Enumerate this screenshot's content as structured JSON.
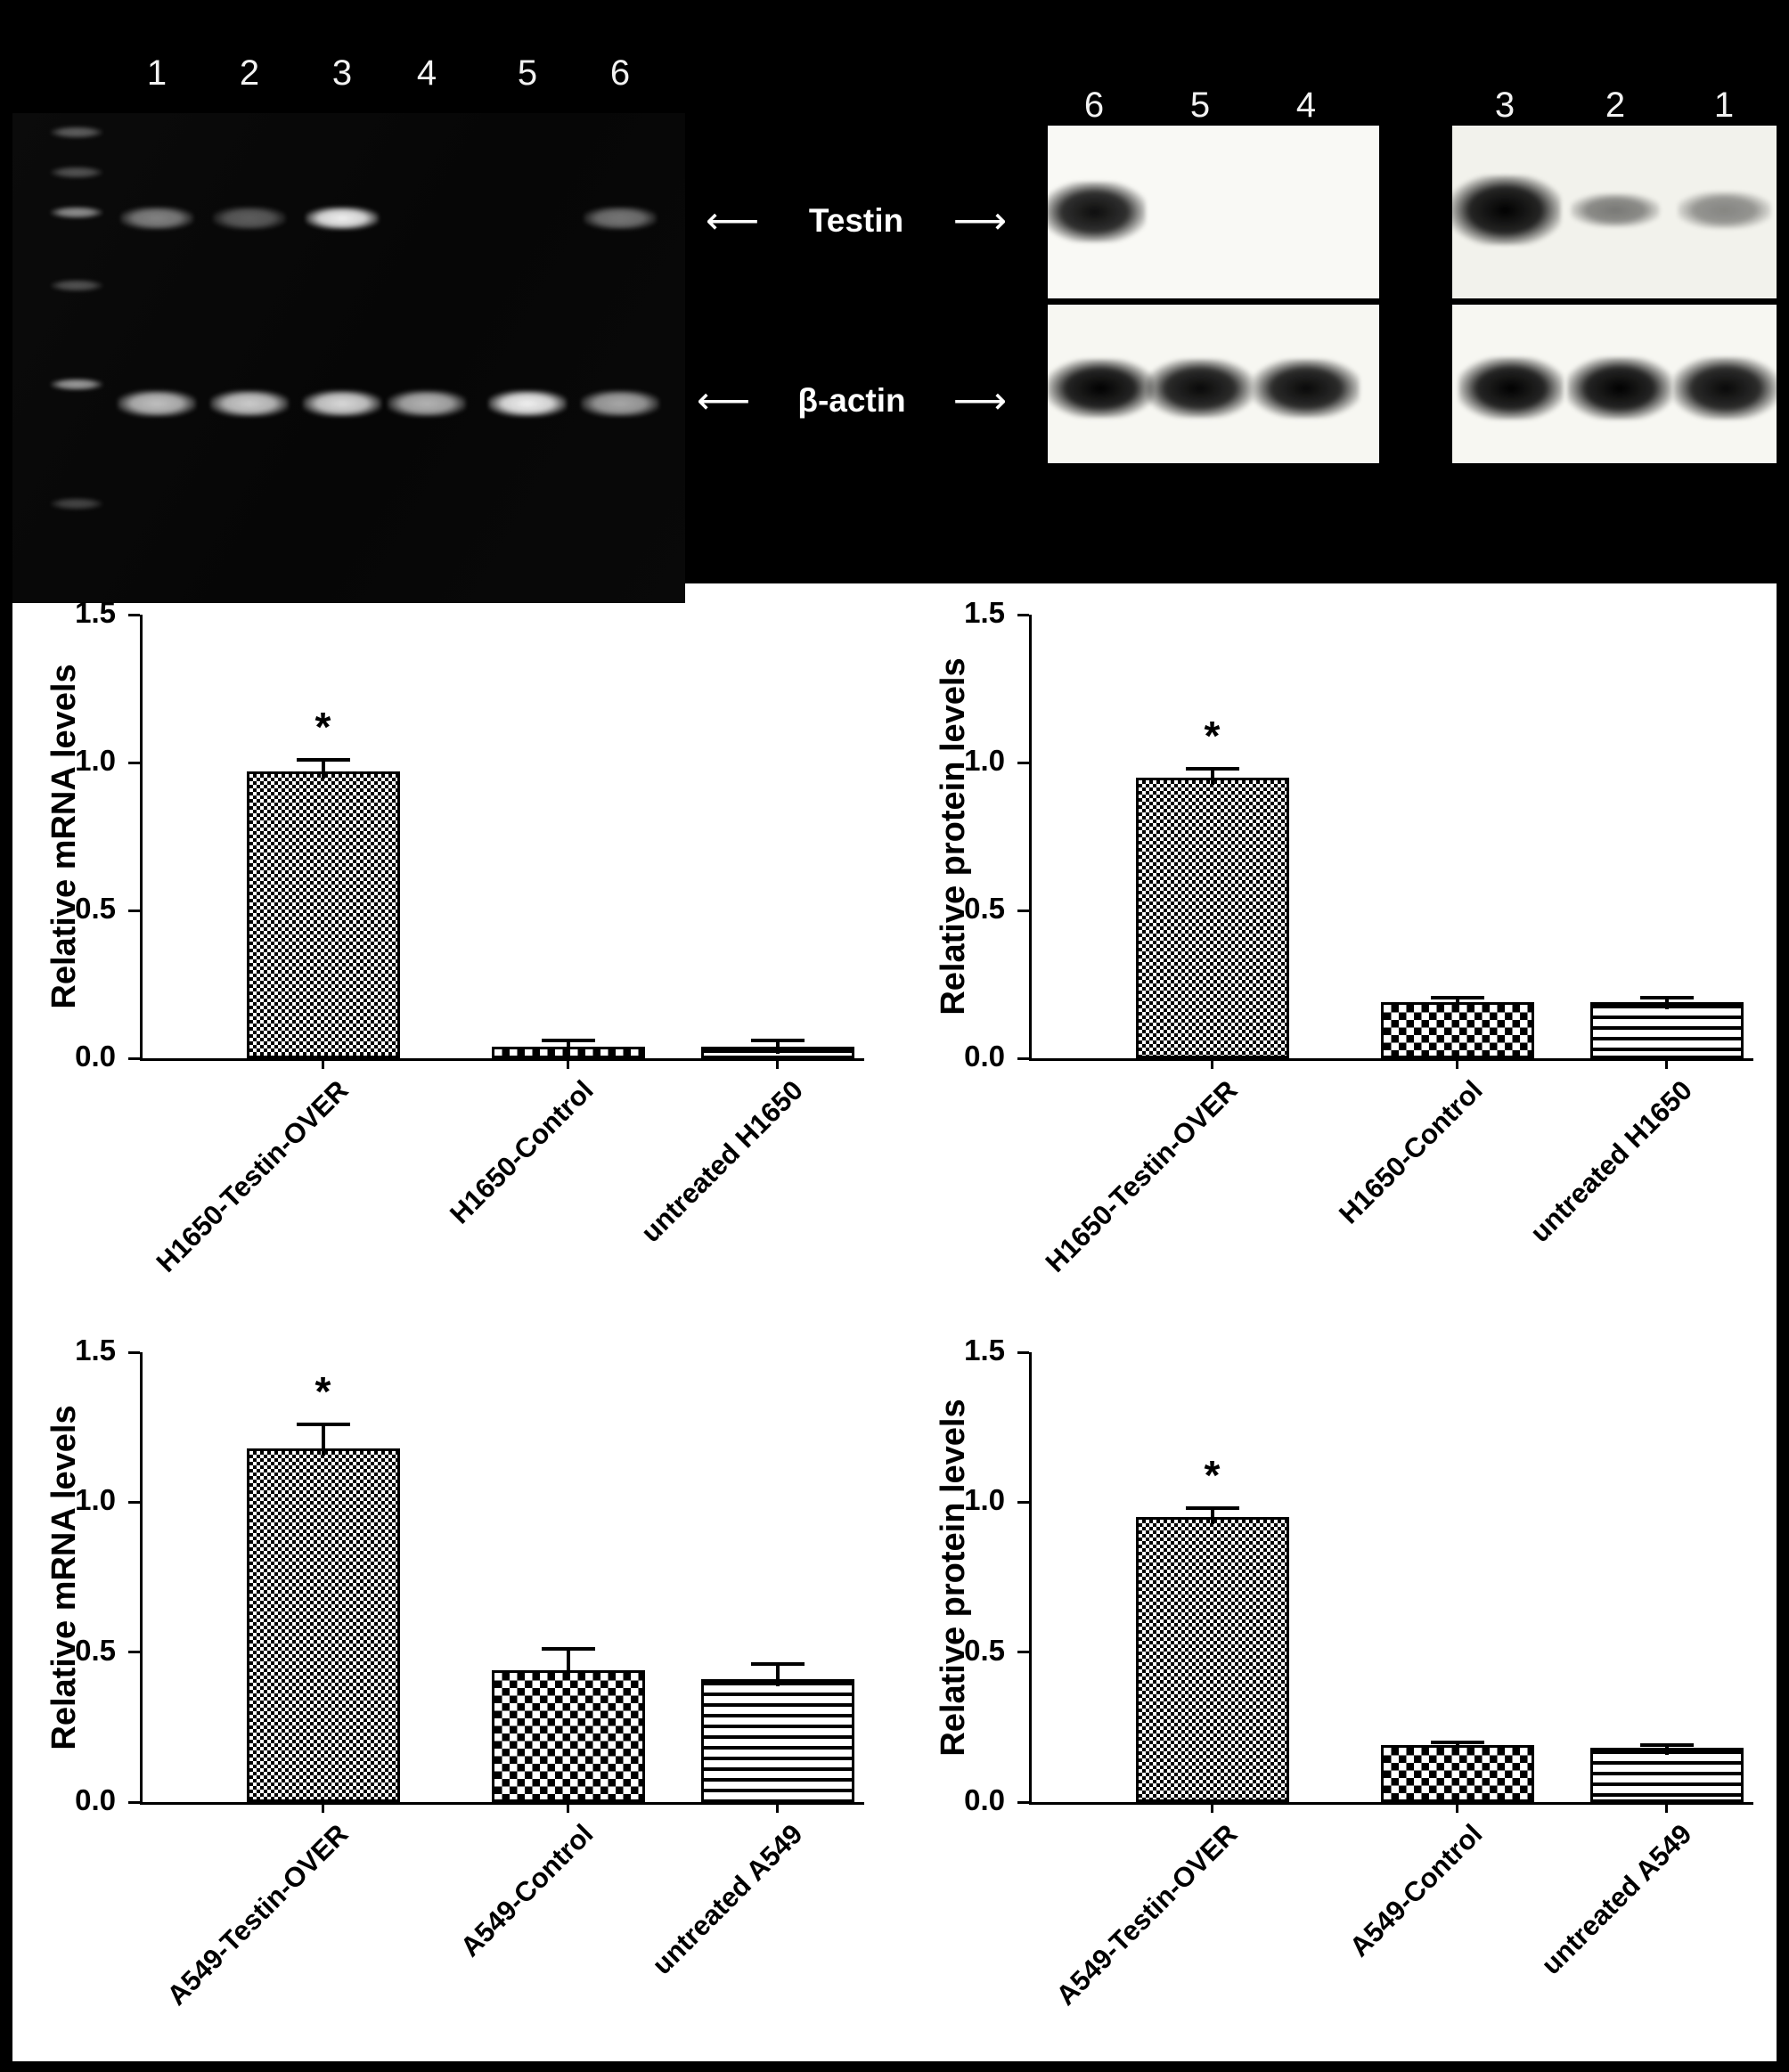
{
  "figure": {
    "gel": {
      "lane_numbers": [
        "1",
        "2",
        "3",
        "4",
        "5",
        "6"
      ],
      "testin_band_intensity": [
        0.5,
        0.35,
        0.95,
        0,
        0,
        0.45
      ],
      "actin_band_intensity": [
        0.75,
        0.8,
        0.85,
        0.7,
        0.95,
        0.65
      ],
      "ladder_band_intensity": [
        0.35,
        0.3,
        0.55,
        0.3,
        0.6,
        0.25
      ]
    },
    "markers": {
      "left_arrow": "⟵",
      "right_arrow": "⟶",
      "testin": "Testin",
      "beta_actin": "β-actin"
    },
    "western": {
      "left_lane_numbers": [
        "6",
        "5",
        "4"
      ],
      "right_lane_numbers": [
        "3",
        "2",
        "1"
      ],
      "testin_left_intensity": [
        0.95,
        0,
        0
      ],
      "testin_right_intensity": [
        1,
        0.5,
        0.45
      ],
      "actin_left_intensity": [
        1,
        0.97,
        0.97
      ],
      "actin_right_intensity": [
        1,
        1,
        0.97
      ]
    }
  },
  "chart_data": [
    {
      "type": "bar",
      "title": "",
      "xlabel": "",
      "ylabel": "Relative mRNA levels",
      "ylim": [
        0,
        1.5
      ],
      "yticks": [
        0.0,
        0.5,
        1.0,
        1.5
      ],
      "categories": [
        "H1650-Testin-OVER",
        "H1650-Control",
        "untreated H1650"
      ],
      "values": [
        0.97,
        0.04,
        0.04
      ],
      "errors": [
        0.04,
        0.02,
        0.02
      ],
      "significance": [
        "*",
        "",
        ""
      ],
      "bar_patterns": [
        "fine-checker",
        "checker",
        "horizontal-lines"
      ],
      "grid": false,
      "legend": "none"
    },
    {
      "type": "bar",
      "title": "",
      "xlabel": "",
      "ylabel": "Relative protein levels",
      "ylim": [
        0,
        1.5
      ],
      "yticks": [
        0.0,
        0.5,
        1.0,
        1.5
      ],
      "categories": [
        "H1650-Testin-OVER",
        "H1650-Control",
        "untreated H1650"
      ],
      "values": [
        0.95,
        0.19,
        0.19
      ],
      "errors": [
        0.03,
        0.015,
        0.015
      ],
      "significance": [
        "*",
        "",
        ""
      ],
      "bar_patterns": [
        "fine-checker",
        "checker",
        "horizontal-lines"
      ],
      "grid": false,
      "legend": "none"
    },
    {
      "type": "bar",
      "title": "",
      "xlabel": "",
      "ylabel": "Relative mRNA levels",
      "ylim": [
        0,
        1.5
      ],
      "yticks": [
        0.0,
        0.5,
        1.0,
        1.5
      ],
      "categories": [
        "A549-Testin-OVER",
        "A549-Control",
        "untreated A549"
      ],
      "values": [
        1.18,
        0.44,
        0.41
      ],
      "errors": [
        0.08,
        0.07,
        0.05
      ],
      "significance": [
        "*",
        "",
        ""
      ],
      "bar_patterns": [
        "fine-checker",
        "checker",
        "horizontal-lines"
      ],
      "grid": false,
      "legend": "none"
    },
    {
      "type": "bar",
      "title": "",
      "xlabel": "",
      "ylabel": "Relative protein levels",
      "ylim": [
        0,
        1.5
      ],
      "yticks": [
        0.0,
        0.5,
        1.0,
        1.5
      ],
      "categories": [
        "A549-Testin-OVER",
        "A549-Control",
        "untreated A549"
      ],
      "values": [
        0.95,
        0.19,
        0.18
      ],
      "errors": [
        0.03,
        0.01,
        0.01
      ],
      "significance": [
        "*",
        "",
        ""
      ],
      "bar_patterns": [
        "fine-checker",
        "checker",
        "horizontal-lines"
      ],
      "grid": false,
      "legend": "none"
    }
  ]
}
